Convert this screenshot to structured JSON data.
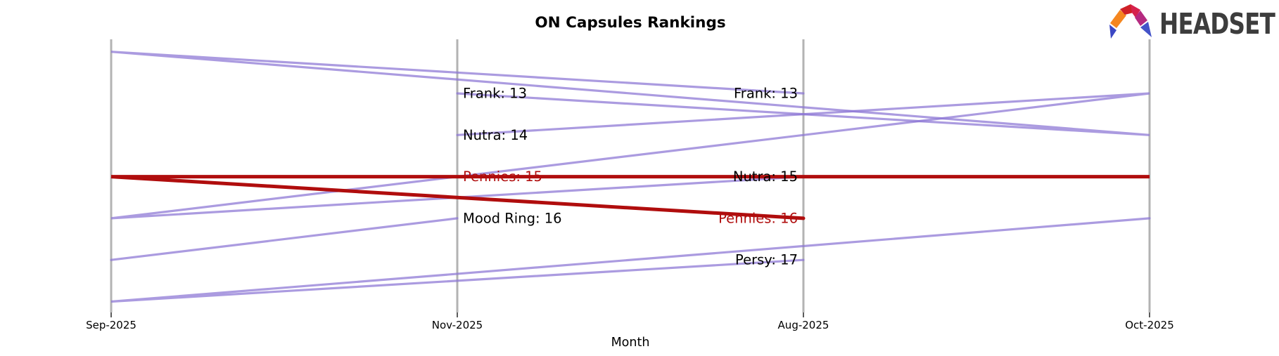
{
  "logo": {
    "text": "HEADSET"
  },
  "chart_data": {
    "type": "line",
    "subtype": "ranking-bump-chart",
    "title": "ON Capsules Rankings",
    "xlabel": "Month",
    "ylabel": "",
    "axis_months_display": [
      "Sep-2025",
      "Nov-2025",
      "Aug-2025",
      "Oct-2025"
    ],
    "months_chronological": [
      "Aug-2025",
      "Sep-2025",
      "Oct-2025",
      "Nov-2025"
    ],
    "rank_axis": {
      "direction": "down",
      "visible_rank_range": [
        12,
        18
      ],
      "grid": false
    },
    "series": [
      {
        "name": "Frank",
        "highlighted": false,
        "ranks": {
          "Aug-2025": 13,
          "Sep-2025": 12,
          "Oct-2025": 14,
          "Nov-2025": 13
        }
      },
      {
        "name": "Nutra",
        "highlighted": false,
        "ranks": {
          "Aug-2025": 15,
          "Sep-2025": 16,
          "Oct-2025": 13,
          "Nov-2025": 14
        }
      },
      {
        "name": "Pennies",
        "highlighted": true,
        "ranks": {
          "Aug-2025": 16,
          "Sep-2025": 15,
          "Oct-2025": 15,
          "Nov-2025": 15
        }
      },
      {
        "name": "Mood Ring",
        "highlighted": false,
        "ranks": {
          "Aug-2025": null,
          "Sep-2025": 17,
          "Oct-2025": null,
          "Nov-2025": 16
        }
      },
      {
        "name": "Persy",
        "highlighted": false,
        "ranks": {
          "Aug-2025": 17,
          "Sep-2025": 18,
          "Oct-2025": 16,
          "Nov-2025": null
        }
      }
    ],
    "axis_point_labels": [
      {
        "month": "Nov-2025",
        "side": "right",
        "labels": [
          "Frank: 13",
          "Nutra: 14",
          "Pennies: 15",
          "Mood Ring: 16"
        ]
      },
      {
        "month": "Aug-2025",
        "side": "left",
        "labels": [
          "Frank: 13",
          "Nutra: 15",
          "Pennies: 16",
          "Persy: 17"
        ]
      }
    ],
    "label_format": "{name}: {rank}",
    "legend": "none",
    "colors": {
      "line": "#8b75d4",
      "line_opacity": 0.72,
      "highlight": "#b00d0d",
      "axis": "#b3b3b3",
      "label_text": "#000000"
    },
    "logo_colors": [
      "#f5861f",
      "#cf2027",
      "#d6224c",
      "#b52a80",
      "#3b47c4",
      "#4453c8"
    ]
  }
}
